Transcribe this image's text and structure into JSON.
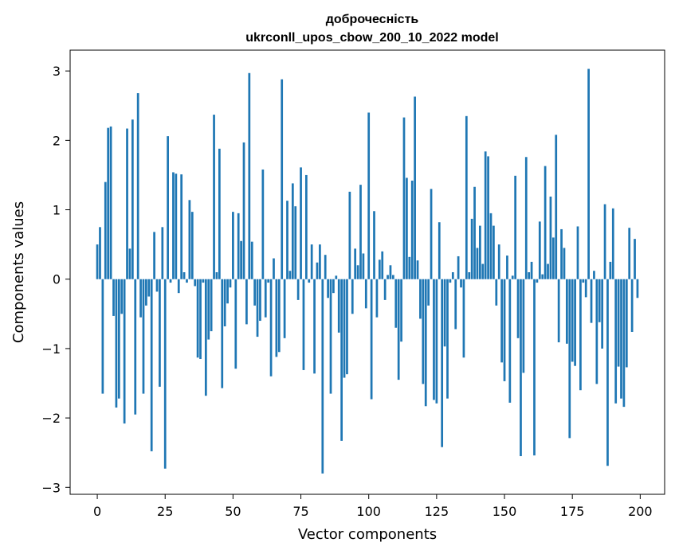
{
  "chart_data": {
    "type": "bar",
    "title": [
      "доброчесність",
      "ukrconll_upos_cbow_200_10_2022 model"
    ],
    "xlabel": "Vector components",
    "ylabel": "Components values",
    "xlim": [
      -10,
      209
    ],
    "ylim": [
      -3.1,
      3.3
    ],
    "xticks": [
      0,
      25,
      50,
      75,
      100,
      125,
      150,
      175,
      200
    ],
    "yticks": [
      -3,
      -2,
      -1,
      0,
      1,
      2,
      3
    ],
    "ytick_labels": [
      "−3",
      "−2",
      "−1",
      "0",
      "1",
      "2",
      "3"
    ],
    "grid": false,
    "bar_color": "#1f77b4",
    "x": [
      0,
      1,
      2,
      3,
      4,
      5,
      6,
      7,
      8,
      9,
      10,
      11,
      12,
      13,
      14,
      15,
      16,
      17,
      18,
      19,
      20,
      21,
      22,
      23,
      24,
      25,
      26,
      27,
      28,
      29,
      30,
      31,
      32,
      33,
      34,
      35,
      36,
      37,
      38,
      39,
      40,
      41,
      42,
      43,
      44,
      45,
      46,
      47,
      48,
      49,
      50,
      51,
      52,
      53,
      54,
      55,
      56,
      57,
      58,
      59,
      60,
      61,
      62,
      63,
      64,
      65,
      66,
      67,
      68,
      69,
      70,
      71,
      72,
      73,
      74,
      75,
      76,
      77,
      78,
      79,
      80,
      81,
      82,
      83,
      84,
      85,
      86,
      87,
      88,
      89,
      90,
      91,
      92,
      93,
      94,
      95,
      96,
      97,
      98,
      99,
      100,
      101,
      102,
      103,
      104,
      105,
      106,
      107,
      108,
      109,
      110,
      111,
      112,
      113,
      114,
      115,
      116,
      117,
      118,
      119,
      120,
      121,
      122,
      123,
      124,
      125,
      126,
      127,
      128,
      129,
      130,
      131,
      132,
      133,
      134,
      135,
      136,
      137,
      138,
      139,
      140,
      141,
      142,
      143,
      144,
      145,
      146,
      147,
      148,
      149,
      150,
      151,
      152,
      153,
      154,
      155,
      156,
      157,
      158,
      159,
      160,
      161,
      162,
      163,
      164,
      165,
      166,
      167,
      168,
      169,
      170,
      171,
      172,
      173,
      174,
      175,
      176,
      177,
      178,
      179,
      180,
      181,
      182,
      183,
      184,
      185,
      186,
      187,
      188,
      189,
      190,
      191,
      192,
      193,
      194,
      195,
      196,
      197,
      198,
      199
    ],
    "values": [
      0.5,
      0.75,
      -1.65,
      1.4,
      2.18,
      2.2,
      -0.53,
      -1.85,
      -1.72,
      -0.5,
      -2.08,
      2.17,
      0.44,
      2.3,
      -1.95,
      2.68,
      -0.55,
      -1.65,
      -0.38,
      -0.25,
      -2.48,
      0.68,
      -0.18,
      -1.55,
      0.75,
      -2.73,
      2.06,
      -0.05,
      1.54,
      1.52,
      -0.2,
      1.51,
      0.1,
      -0.05,
      1.14,
      0.97,
      -0.1,
      -1.13,
      -1.15,
      -0.05,
      -1.68,
      -0.87,
      -0.75,
      2.37,
      0.1,
      1.88,
      -1.57,
      -0.68,
      -0.35,
      -0.12,
      0.97,
      -1.29,
      0.95,
      0.55,
      1.97,
      -0.65,
      2.97,
      0.54,
      -0.38,
      -0.83,
      -0.6,
      1.58,
      -0.55,
      -0.05,
      -1.4,
      0.3,
      -1.12,
      -1.05,
      2.88,
      -0.85,
      1.13,
      0.12,
      1.38,
      1.05,
      -0.3,
      1.61,
      -1.31,
      1.5,
      -0.05,
      0.5,
      -1.36,
      0.24,
      0.5,
      -2.8,
      0.35,
      -0.27,
      -1.65,
      -0.2,
      0.05,
      -0.77,
      -2.33,
      -1.42,
      -1.37,
      1.26,
      -0.5,
      0.44,
      0.2,
      1.36,
      0.37,
      -0.42,
      2.4,
      -1.73,
      0.98,
      -0.55,
      0.28,
      0.4,
      -0.3,
      0.06,
      0.2,
      0.06,
      -0.7,
      -1.45,
      -0.9,
      2.33,
      1.46,
      0.32,
      1.42,
      2.63,
      0.27,
      -0.57,
      -1.51,
      -1.83,
      -0.38,
      1.3,
      -1.74,
      -1.79,
      0.82,
      -2.42,
      -0.97,
      -1.72,
      -0.05,
      0.1,
      -0.72,
      0.33,
      -0.12,
      -1.13,
      2.35,
      0.1,
      0.87,
      1.33,
      0.45,
      0.77,
      0.22,
      1.84,
      1.77,
      0.95,
      0.77,
      -0.38,
      0.5,
      -1.2,
      -1.47,
      0.34,
      -1.78,
      0.05,
      1.49,
      -0.85,
      -2.55,
      -1.35,
      1.76,
      0.1,
      0.25,
      -2.54,
      -0.05,
      0.83,
      0.07,
      1.63,
      0.22,
      1.19,
      0.6,
      2.08,
      -0.91,
      0.72,
      0.45,
      -0.93,
      -2.29,
      -1.19,
      -1.25,
      0.76,
      -1.6,
      -0.05,
      -0.26,
      3.03,
      -0.63,
      0.12,
      -1.51,
      -0.62,
      -1.0,
      1.08,
      -2.69,
      0.25,
      1.02,
      -1.79,
      -1.26,
      -1.72,
      -1.84,
      -1.27,
      0.74,
      -0.76,
      0.58,
      -0.27
    ]
  }
}
